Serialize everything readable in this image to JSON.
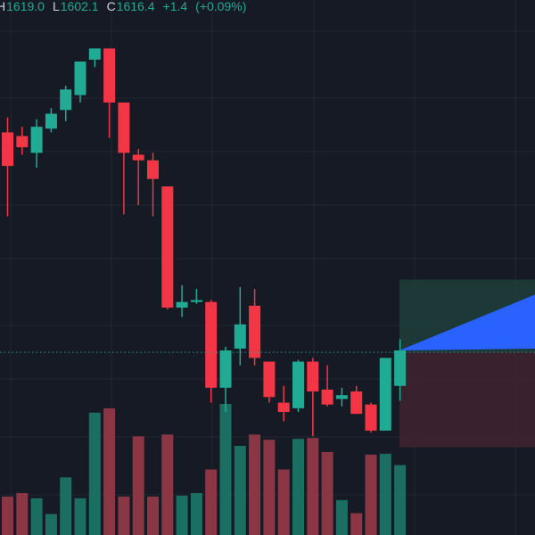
{
  "legend": {
    "h_label": "H",
    "h_value": "1619.0",
    "l_label": "L",
    "l_value": "1602.1",
    "c_label": "C",
    "c_value": "1616.4",
    "change": "+1.4",
    "change_pct": "(+0.09%)"
  },
  "colors": {
    "background": "#161a25",
    "grid": "#232734",
    "bull": "#22ab94",
    "bear": "#f23645",
    "bull_volume": "#1b6e62",
    "bear_volume": "#8a3644",
    "text": "#d1d4dc",
    "projection_fill": "#2962ff",
    "target_zone": "#1d3d3b",
    "stop_zone": "#3d2330",
    "price_line": "#22ab94"
  },
  "chart_data": {
    "type": "candlestick",
    "candles": [
      {
        "o": 1622.0,
        "h": 1622.8,
        "l": 1617.5,
        "c": 1620.2,
        "v": 44
      },
      {
        "o": 1621.8,
        "h": 1622.3,
        "l": 1620.8,
        "c": 1621.2,
        "v": 48
      },
      {
        "o": 1620.9,
        "h": 1622.7,
        "l": 1620.1,
        "c": 1622.3,
        "v": 42
      },
      {
        "o": 1622.2,
        "h": 1623.3,
        "l": 1622.0,
        "c": 1623.0,
        "v": 24
      },
      {
        "o": 1623.2,
        "h": 1624.5,
        "l": 1622.6,
        "c": 1624.3,
        "v": 66
      },
      {
        "o": 1624.0,
        "h": 1625.8,
        "l": 1623.6,
        "c": 1625.8,
        "v": 42
      },
      {
        "o": 1625.9,
        "h": 1626.5,
        "l": 1625.5,
        "c": 1626.5,
        "v": 140
      },
      {
        "o": 1626.5,
        "h": 1626.5,
        "l": 1621.7,
        "c": 1623.6,
        "v": 145
      },
      {
        "o": 1623.6,
        "h": 1623.6,
        "l": 1617.6,
        "c": 1620.9,
        "v": 44
      },
      {
        "o": 1620.8,
        "h": 1621.1,
        "l": 1618.1,
        "c": 1620.5,
        "v": 113
      },
      {
        "o": 1620.5,
        "h": 1620.9,
        "l": 1617.5,
        "c": 1619.5,
        "v": 44
      },
      {
        "o": 1619.1,
        "h": 1619.1,
        "l": 1612.5,
        "c": 1612.6,
        "v": 115
      },
      {
        "o": 1612.6,
        "h": 1613.8,
        "l": 1612.1,
        "c": 1612.9,
        "v": 45
      },
      {
        "o": 1612.9,
        "h": 1613.6,
        "l": 1612.8,
        "c": 1613.0,
        "v": 48
      },
      {
        "o": 1612.9,
        "h": 1613.0,
        "l": 1607.5,
        "c": 1608.3,
        "v": 75
      },
      {
        "o": 1608.3,
        "h": 1610.5,
        "l": 1607.0,
        "c": 1610.3,
        "v": 150
      },
      {
        "o": 1610.4,
        "h": 1613.7,
        "l": 1609.5,
        "c": 1611.7,
        "v": 102
      },
      {
        "o": 1612.7,
        "h": 1613.6,
        "l": 1609.5,
        "c": 1609.9,
        "v": 115
      },
      {
        "o": 1609.7,
        "h": 1609.7,
        "l": 1607.5,
        "c": 1607.8,
        "v": 109
      },
      {
        "o": 1607.5,
        "h": 1608.4,
        "l": 1606.5,
        "c": 1607.0,
        "v": 75
      },
      {
        "o": 1607.2,
        "h": 1609.8,
        "l": 1607.0,
        "c": 1609.7,
        "v": 110
      },
      {
        "o": 1609.7,
        "h": 1609.9,
        "l": 1605.7,
        "c": 1608.1,
        "v": 111
      },
      {
        "o": 1608.2,
        "h": 1609.5,
        "l": 1607.3,
        "c": 1607.4,
        "v": 95
      },
      {
        "o": 1607.7,
        "h": 1608.3,
        "l": 1607.3,
        "c": 1607.9,
        "v": 40
      },
      {
        "o": 1608.1,
        "h": 1608.4,
        "l": 1606.9,
        "c": 1606.9,
        "v": 25
      },
      {
        "o": 1607.4,
        "h": 1607.5,
        "l": 1605.9,
        "c": 1606.0,
        "v": 92
      },
      {
        "o": 1606.0,
        "h": 1609.9,
        "l": 1606.0,
        "c": 1609.9,
        "v": 93
      },
      {
        "o": 1608.4,
        "h": 1610.9,
        "l": 1607.6,
        "c": 1610.3,
        "v": 80
      }
    ],
    "y_min": 1600.4,
    "y_max": 1629.1,
    "last_price": 1610.2,
    "target_price": 1614.1,
    "stop_price": 1605.1,
    "projection": {
      "start": 1610.3,
      "upper_end": 1613.3,
      "lower_end": 1610.4
    },
    "volume_max": 150,
    "grid": true,
    "x_axis_labels": [],
    "y_axis_labels": []
  }
}
